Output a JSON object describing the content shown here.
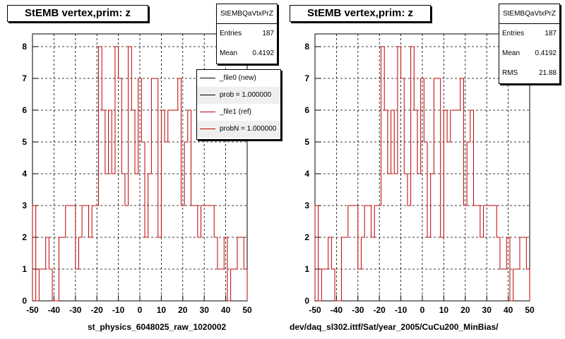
{
  "panels": [
    {
      "title": "StEMB  vertex,prim: z",
      "stats": {
        "name": "StEMBQaVtxPrZ",
        "entries_label": "Entries",
        "entries": "187",
        "mean_label": "Mean",
        "mean": "0.4192"
      },
      "legend": [
        {
          "label": "_file0 (new)",
          "color": "#000000"
        },
        {
          "label": "prob = 1.000000",
          "color": "#000000"
        },
        {
          "label": "_file1 (ref)",
          "color": "#c00000"
        },
        {
          "label": "probN = 1.000000",
          "color": "#c00000"
        }
      ],
      "xcaption": "st_physics_6048025_raw_1020002"
    },
    {
      "title": "StEMB  vertex,prim: z",
      "stats": {
        "name": "StEMBQaVtxPrZ",
        "entries_label": "Entries",
        "entries": "187",
        "mean_label": "Mean",
        "mean": "0.4192",
        "rms_label": "RMS",
        "rms": "21.88"
      },
      "xcaption": "dev/daq_sl302.ittf/Sat/year_2005/CuCu200_MinBias/"
    }
  ],
  "chart_data": [
    {
      "type": "histogram",
      "series_color": "#c00000",
      "xlim": [
        -50,
        50
      ],
      "ylim": [
        0,
        8.4
      ],
      "xticks": [
        -50,
        -40,
        -30,
        -20,
        -10,
        0,
        10,
        20,
        30,
        40,
        50
      ],
      "yticks": [
        0,
        1,
        2,
        3,
        4,
        5,
        6,
        7,
        8
      ],
      "grid": true,
      "bin_width": 1,
      "values": [
        3,
        0,
        1,
        1,
        2,
        1,
        0,
        0,
        2,
        2,
        3,
        3,
        3,
        1,
        2,
        3,
        3,
        2,
        3,
        3,
        8,
        6,
        4,
        6,
        4,
        8,
        7,
        4,
        3,
        8,
        6,
        4,
        7,
        5,
        2,
        4,
        7,
        7,
        2,
        6,
        5,
        6,
        6,
        6,
        7,
        3,
        5,
        6,
        3,
        3,
        2,
        3,
        3,
        3,
        3,
        2,
        1,
        1,
        2,
        0,
        1,
        1,
        2,
        2,
        1
      ],
      "x_start": -50,
      "bins_note": ""
    },
    {
      "type": "histogram",
      "series_color": "#c00000",
      "xlim": [
        -50,
        50
      ],
      "ylim": [
        0,
        8.4
      ],
      "xticks": [
        -50,
        -40,
        -30,
        -20,
        -10,
        0,
        10,
        20,
        30,
        40,
        50
      ],
      "yticks": [
        0,
        1,
        2,
        3,
        4,
        5,
        6,
        7,
        8
      ],
      "grid": true
    }
  ],
  "footer": "—"
}
